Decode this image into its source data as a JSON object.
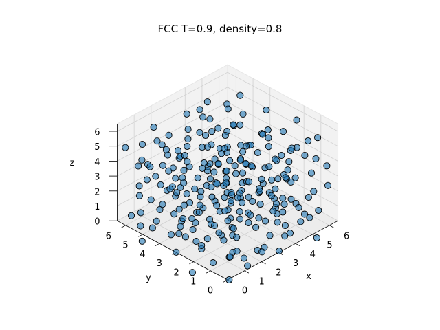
{
  "chart_data": {
    "type": "scatter3d",
    "title": "FCC T=0.9, density=0.8",
    "xlabel": "x",
    "ylabel": "y",
    "zlabel": "z",
    "xlim": [
      0,
      6.5
    ],
    "ylim": [
      0,
      6.5
    ],
    "zlim": [
      0,
      6.5
    ],
    "xticks": [
      "0",
      "1",
      "2",
      "3",
      "4",
      "5",
      "6"
    ],
    "yticks": [
      "0",
      "1",
      "2",
      "3",
      "4",
      "5",
      "6"
    ],
    "zticks": [
      "0",
      "1",
      "2",
      "3",
      "4",
      "5",
      "6"
    ],
    "grid": true,
    "marker_color": "#1f77b4",
    "marker_edge_color": "#000000",
    "n_points": 256,
    "points": []
  }
}
